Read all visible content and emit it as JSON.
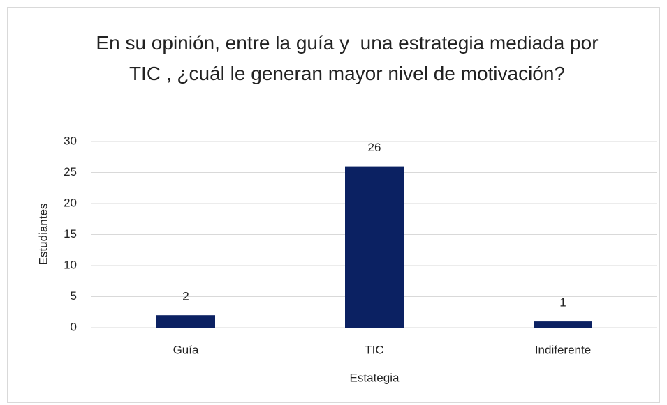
{
  "chart_data": {
    "type": "bar",
    "title": "En su opinión, entre la guía y  una estrategia mediada por TIC , ¿cuál le generan mayor nivel de motivación?",
    "x_label": "Estategia",
    "y_label": "Estudiantes",
    "categories": [
      "Guía",
      "TIC",
      "Indiferente"
    ],
    "values": [
      2,
      26,
      1
    ],
    "color": "#0b2162",
    "ylim": [
      0,
      30
    ],
    "yticks": [
      0,
      5,
      10,
      15,
      20,
      25,
      30
    ],
    "grid": true
  }
}
